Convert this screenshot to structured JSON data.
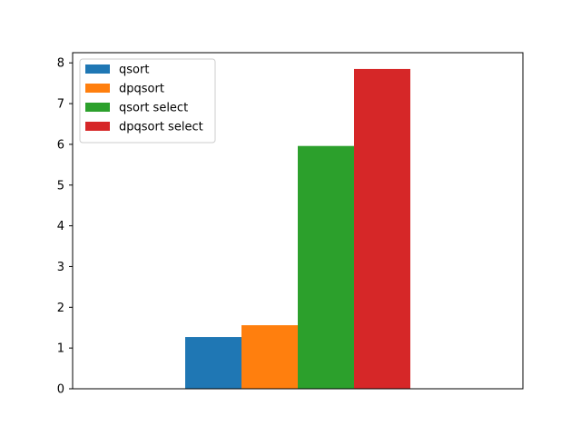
{
  "chart_data": {
    "type": "bar",
    "title": "",
    "xlabel": "",
    "ylabel": "",
    "ylim": [
      0,
      8.25
    ],
    "yticks": [
      0,
      1,
      2,
      3,
      4,
      5,
      6,
      7,
      8
    ],
    "xticks_visible": false,
    "grid": false,
    "legend_position": "upper-left",
    "series": [
      {
        "name": "qsort",
        "value": 1.27,
        "color": "#1f77b4"
      },
      {
        "name": "dpqsort",
        "value": 1.56,
        "color": "#ff7f0e"
      },
      {
        "name": "qsort select",
        "value": 5.96,
        "color": "#2ca02c"
      },
      {
        "name": "dpqsort select",
        "value": 7.85,
        "color": "#d62728"
      }
    ]
  }
}
